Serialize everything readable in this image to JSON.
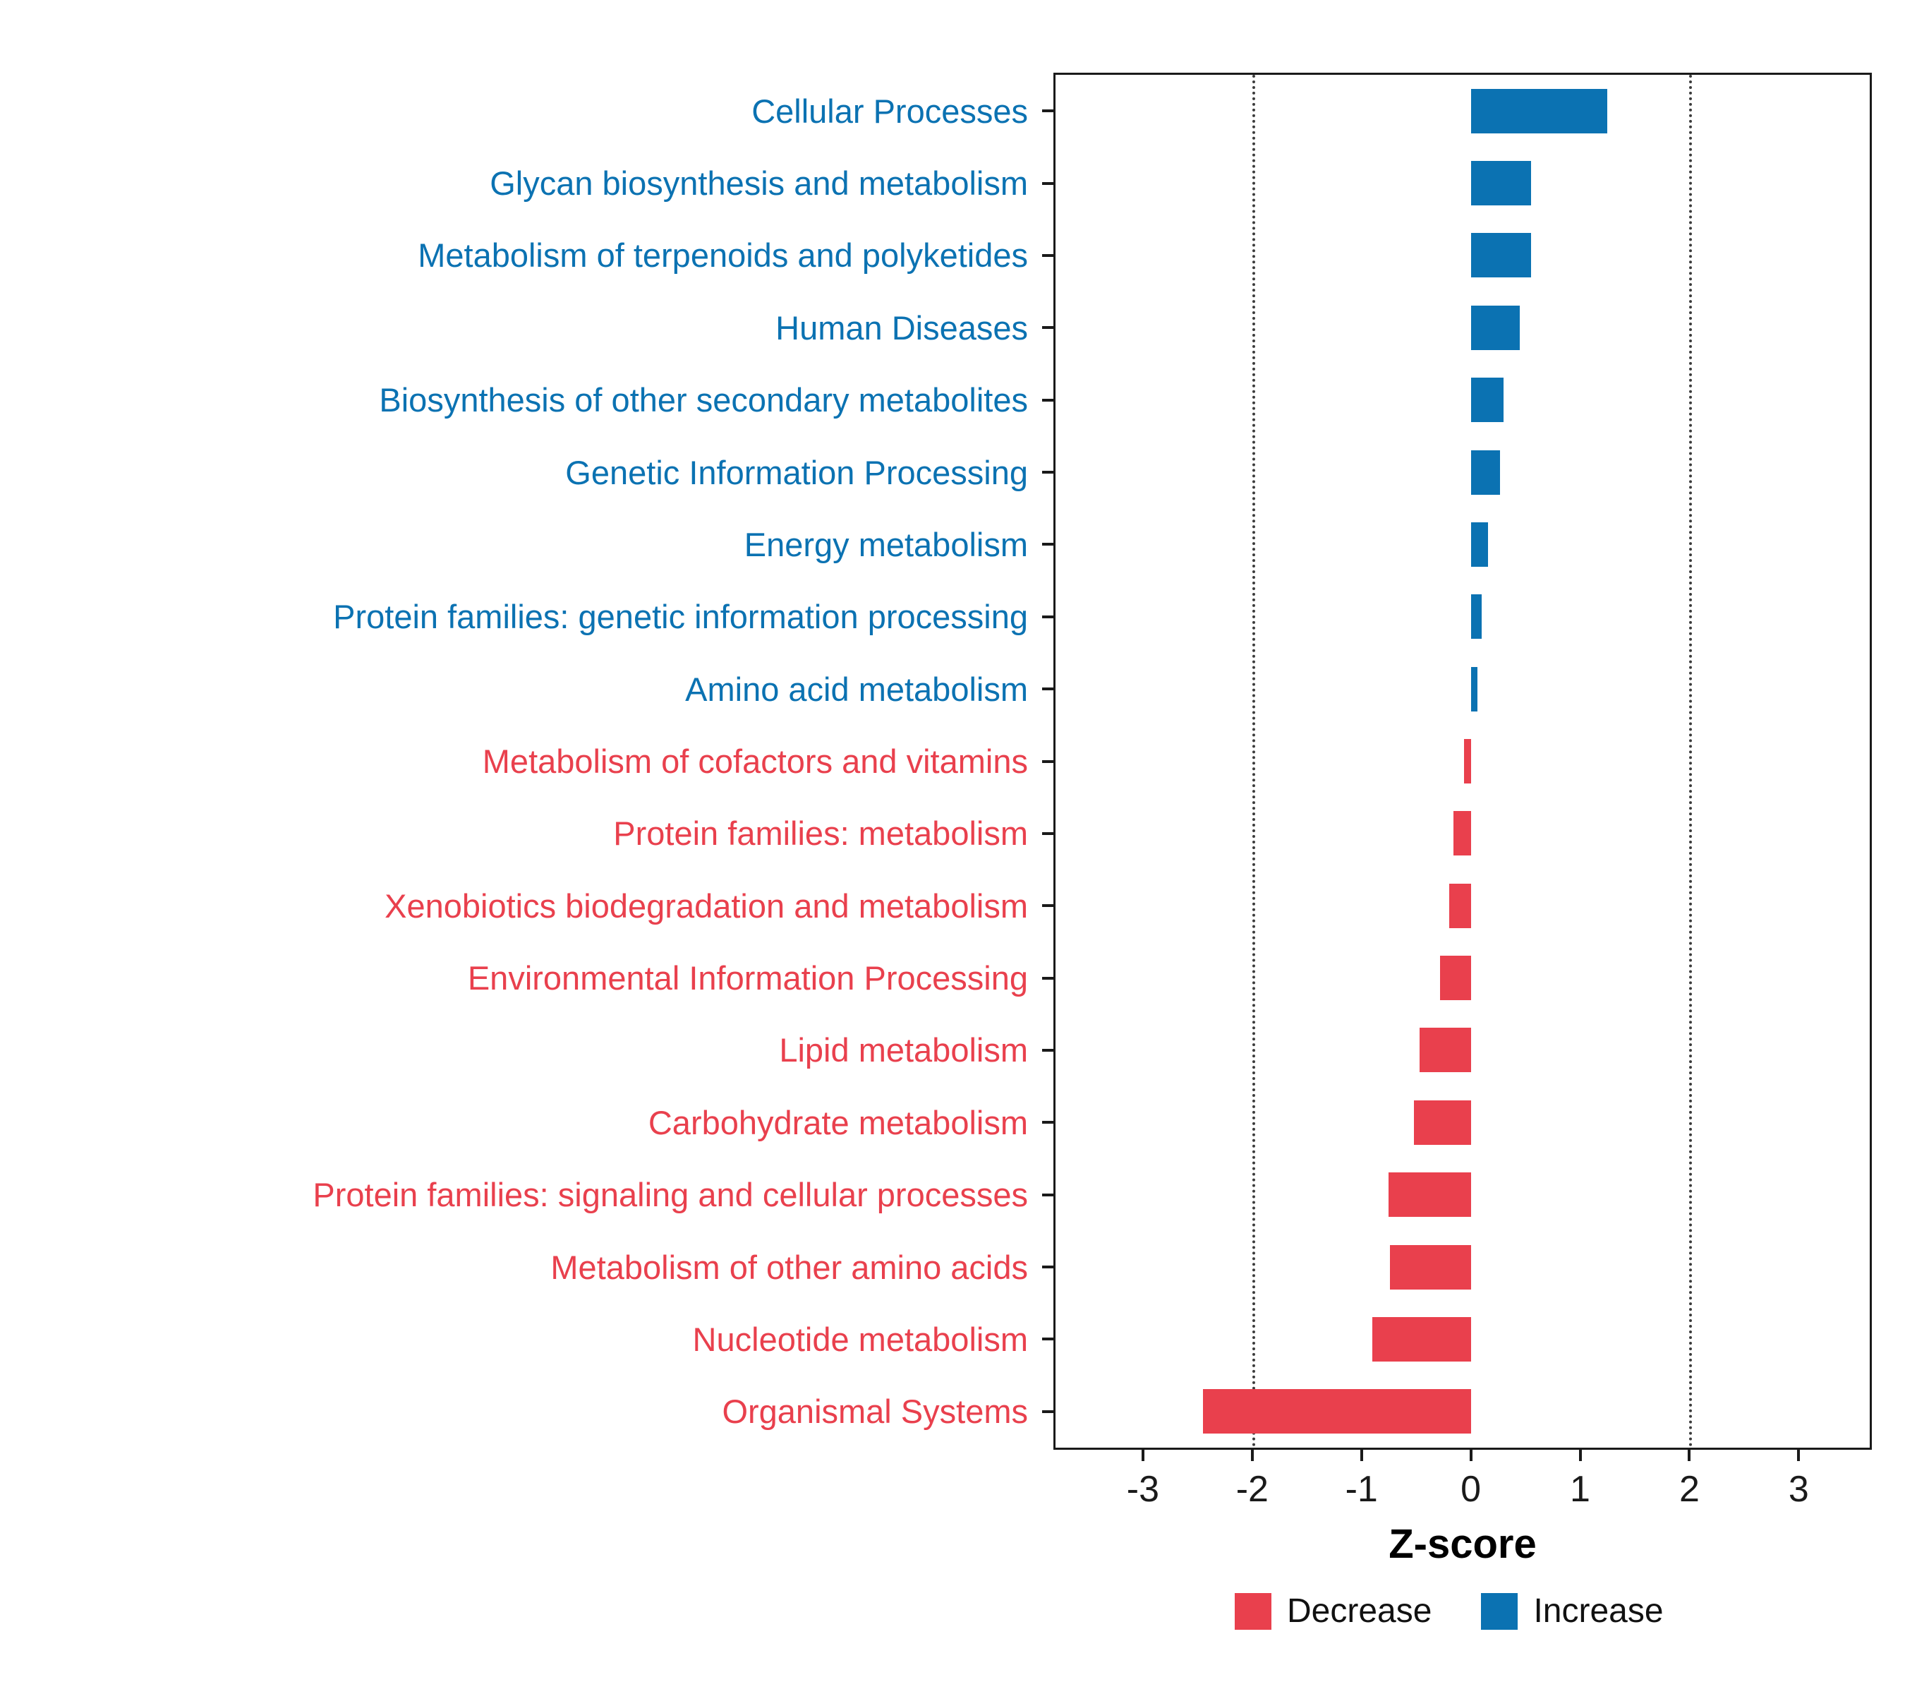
{
  "chart_data": {
    "type": "bar",
    "orientation": "horizontal",
    "title": "",
    "xlabel": "Z-score",
    "ylabel": "",
    "xlim": [
      -3.8,
      3.65
    ],
    "x_ticks": [
      -3,
      -2,
      -1,
      0,
      1,
      2,
      3
    ],
    "reference_lines": [
      -2,
      2
    ],
    "grid": "dotted reference lines at -2 and 2 only",
    "legend_position": "bottom-right",
    "categories": [
      "Cellular Processes",
      "Glycan biosynthesis and metabolism",
      "Metabolism of terpenoids and polyketides",
      "Human Diseases",
      "Biosynthesis of other secondary metabolites",
      "Genetic Information Processing",
      "Energy metabolism",
      "Protein families: genetic information processing",
      "Amino acid metabolism",
      "Metabolism of cofactors and vitamins",
      "Protein families: metabolism",
      "Xenobiotics biodegradation and metabolism",
      "Environmental Information Processing",
      "Lipid metabolism",
      "Carbohydrate metabolism",
      "Protein families: signaling and cellular processes",
      "Metabolism of other amino acids",
      "Nucleotide metabolism",
      "Organismal Systems"
    ],
    "values": [
      1.25,
      0.55,
      0.55,
      0.45,
      0.3,
      0.27,
      0.16,
      0.1,
      0.06,
      -0.06,
      -0.16,
      -0.2,
      -0.28,
      -0.47,
      -0.52,
      -0.75,
      -0.74,
      -0.9,
      -2.45
    ],
    "directions": [
      "increase",
      "increase",
      "increase",
      "increase",
      "increase",
      "increase",
      "increase",
      "increase",
      "increase",
      "decrease",
      "decrease",
      "decrease",
      "decrease",
      "decrease",
      "decrease",
      "decrease",
      "decrease",
      "decrease",
      "decrease"
    ],
    "colors": {
      "increase": "#0b72b2",
      "decrease": "#e9404d",
      "axis_text": "#1a1a1a",
      "panel_border": "#1a1a1a",
      "refline": "#3c3c3c"
    },
    "legend": [
      {
        "label": "Decrease",
        "color_key": "decrease"
      },
      {
        "label": "Increase",
        "color_key": "increase"
      }
    ]
  }
}
